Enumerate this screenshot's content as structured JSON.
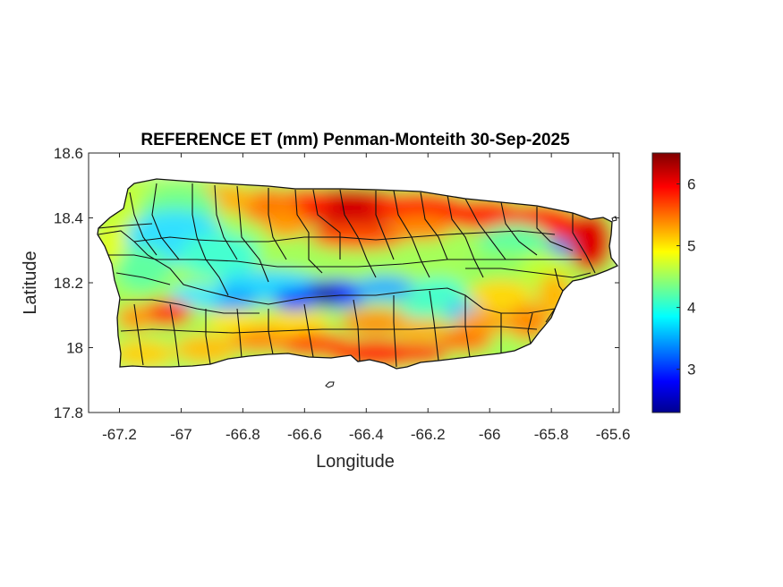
{
  "chart_data": {
    "type": "heatmap",
    "title": "REFERENCE ET (mm) Penman-Monteith 30-Sep-2025",
    "xlabel": "Longitude",
    "ylabel": "Latitude",
    "xlim": [
      -67.3,
      -65.58
    ],
    "ylim": [
      17.8,
      18.6
    ],
    "xticks": [
      -67.2,
      -67,
      -66.8,
      -66.6,
      -66.4,
      -66.2,
      -66,
      -65.8,
      -65.6
    ],
    "yticks": [
      17.8,
      18,
      18.2,
      18.4,
      18.6
    ],
    "xtick_labels": [
      "-67.2",
      "-67",
      "-66.8",
      "-66.6",
      "-66.4",
      "-66.2",
      "-66",
      "-65.8",
      "-65.6"
    ],
    "ytick_labels": [
      "17.8",
      "18",
      "18.2",
      "18.4",
      "18.6"
    ],
    "colorbar": {
      "colormap": "jet",
      "clim": [
        2.3,
        6.5
      ],
      "ticks": [
        3,
        4,
        5,
        6
      ],
      "tick_labels": [
        "3",
        "4",
        "5",
        "6"
      ]
    },
    "colormap_stops": [
      "#00008f",
      "#0000ff",
      "#00ffff",
      "#ffff00",
      "#ff0000",
      "#800000"
    ],
    "grid": false
  }
}
